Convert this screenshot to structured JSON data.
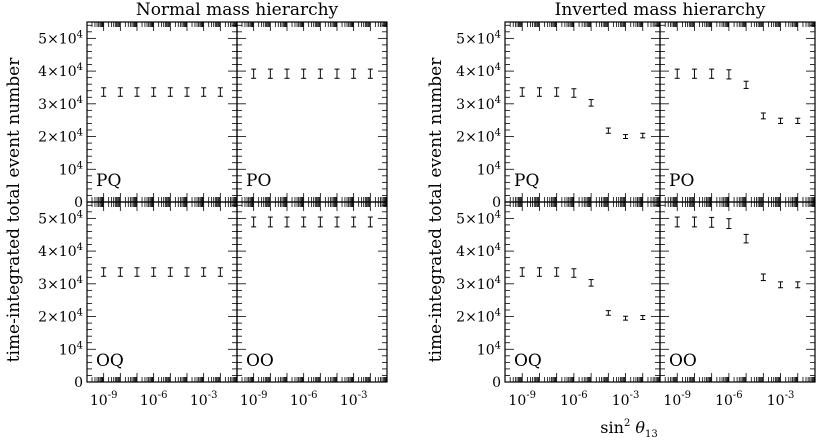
{
  "figure": {
    "ylabel": "time-integrated total event number",
    "xlabel_base": "sin",
    "xlabel_sup": "2",
    "xlabel_theta": "θ",
    "xlabel_sub": "13",
    "ytick_labels": [
      "0",
      "10",
      "2×10",
      "3×10",
      "4×10",
      "5×10"
    ],
    "xtick_labels": [
      "10",
      "10",
      "10"
    ],
    "xtick_exponents": [
      "-9",
      "-6",
      "-3"
    ]
  },
  "chart_data": [
    {
      "type": "scatter",
      "title": "Normal mass hierarchy",
      "x_scale": "log",
      "x": [
        1e-09,
        1e-08,
        1e-07,
        1e-06,
        1e-05,
        0.0001,
        0.001,
        0.01
      ],
      "xlim": [
        1e-10,
        0.1
      ],
      "ylim": [
        0,
        55000
      ],
      "ytick_values": [
        0,
        10000,
        20000,
        30000,
        40000,
        50000
      ],
      "panels": [
        {
          "label": "PQ",
          "values": [
            33600,
            33600,
            33600,
            33600,
            33600,
            33600,
            33600,
            33600
          ],
          "errors": [
            1300,
            1300,
            1300,
            1300,
            1300,
            1300,
            1300,
            1300
          ]
        },
        {
          "label": "PO",
          "values": [
            39200,
            39200,
            39200,
            39200,
            39200,
            39200,
            39200,
            39200
          ],
          "errors": [
            1400,
            1400,
            1400,
            1400,
            1400,
            1400,
            1400,
            1400
          ]
        },
        {
          "label": "OQ",
          "values": [
            33600,
            33600,
            33600,
            33600,
            33600,
            33600,
            33600,
            33600
          ],
          "errors": [
            1300,
            1300,
            1300,
            1300,
            1300,
            1300,
            1300,
            1300
          ]
        },
        {
          "label": "OO",
          "values": [
            48900,
            48900,
            48900,
            48900,
            48900,
            48900,
            48900,
            48900
          ],
          "errors": [
            1500,
            1500,
            1500,
            1500,
            1500,
            1500,
            1500,
            1500
          ]
        }
      ]
    },
    {
      "type": "scatter",
      "title": "Inverted mass hierarchy",
      "x_scale": "log",
      "x": [
        1e-09,
        1e-08,
        1e-07,
        1e-06,
        1e-05,
        0.0001,
        0.001,
        0.01
      ],
      "xlim": [
        1e-10,
        0.1
      ],
      "ylim": [
        0,
        55000
      ],
      "ytick_values": [
        0,
        10000,
        20000,
        30000,
        40000,
        50000
      ],
      "panels": [
        {
          "label": "PQ",
          "values": [
            33600,
            33600,
            33600,
            33300,
            30300,
            21800,
            20000,
            20300
          ],
          "errors": [
            1300,
            1300,
            1300,
            1300,
            1000,
            800,
            600,
            700
          ]
        },
        {
          "label": "PO",
          "values": [
            39200,
            39200,
            39200,
            39000,
            35800,
            26300,
            24800,
            24800
          ],
          "errors": [
            1400,
            1400,
            1400,
            1400,
            1100,
            900,
            800,
            800
          ]
        },
        {
          "label": "OQ",
          "values": [
            33600,
            33600,
            33600,
            33300,
            30300,
            21100,
            19500,
            19700
          ],
          "errors": [
            1300,
            1300,
            1300,
            1300,
            1000,
            700,
            600,
            600
          ]
        },
        {
          "label": "OO",
          "values": [
            48900,
            48900,
            48800,
            48400,
            43800,
            32000,
            29700,
            29700
          ],
          "errors": [
            1500,
            1500,
            1500,
            1500,
            1300,
            1000,
            900,
            900
          ]
        }
      ]
    }
  ]
}
